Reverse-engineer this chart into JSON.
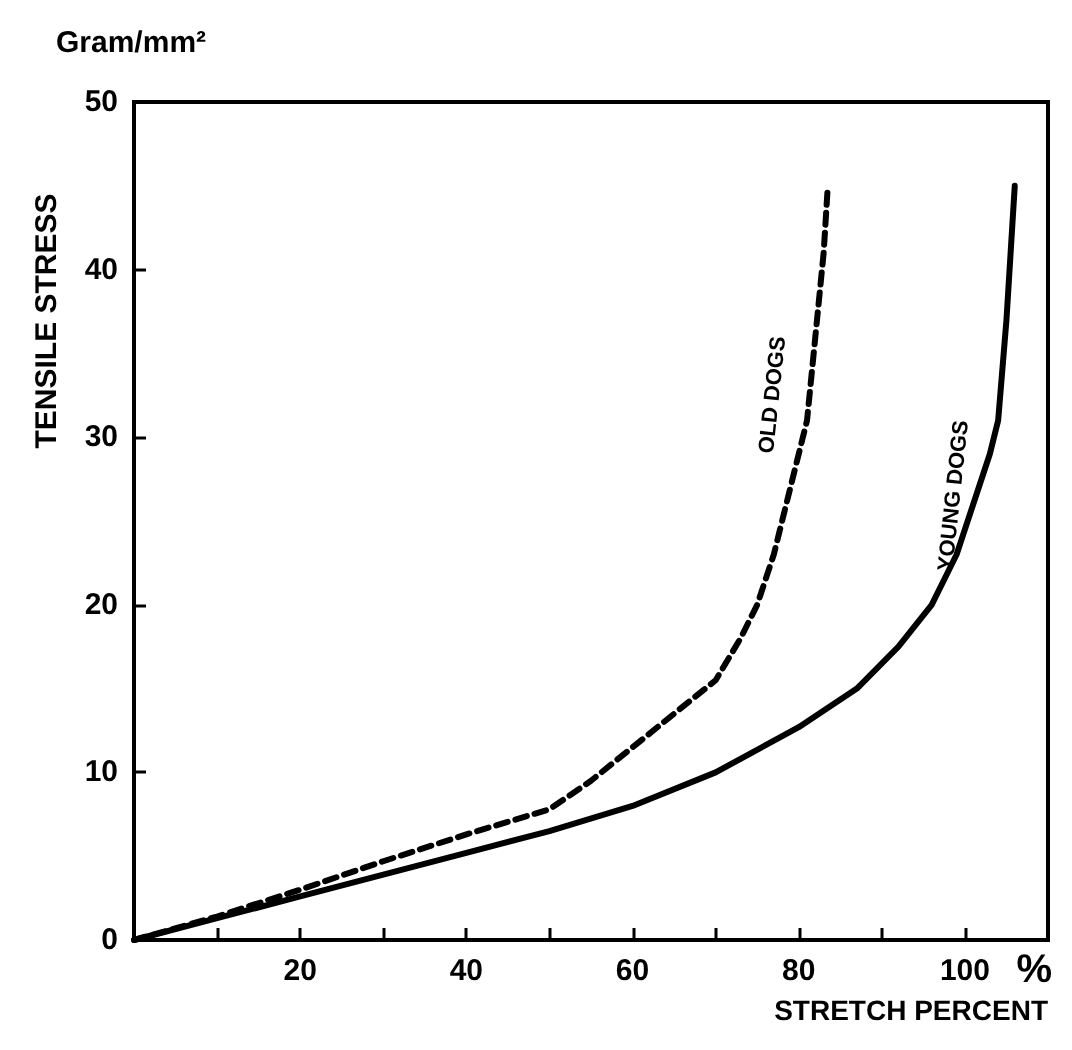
{
  "chart_data": {
    "type": "line",
    "xlabel": "STRETCH PERCENT",
    "ylabel": "TENSILE STRESS",
    "annotations": [
      "Gram/mm²",
      "%"
    ],
    "xlim": [
      0,
      110
    ],
    "xticks": [
      {
        "value": 10,
        "label": null
      },
      20,
      {
        "value": 30,
        "label": null
      },
      40,
      {
        "value": 50,
        "label": null
      },
      60,
      {
        "value": 70,
        "label": null
      },
      80,
      {
        "value": 90,
        "label": null
      },
      100
    ],
    "ylim": [
      0,
      50
    ],
    "yticks": [
      0,
      10,
      20,
      30,
      40,
      50
    ],
    "grid": false,
    "legend": false,
    "marker": "none",
    "series": [
      {
        "name": "OLD DOGS",
        "color": "#000000",
        "line_style": "dashed",
        "x": [
          0,
          10,
          20,
          30,
          40,
          50,
          55,
          60,
          65,
          70,
          73,
          75,
          77,
          79,
          81,
          82,
          83,
          83.5
        ],
        "values": [
          0,
          1.4,
          3,
          4.7,
          6.3,
          7.8,
          9.5,
          11.5,
          13.5,
          15.5,
          18,
          20,
          23,
          27,
          31,
          36,
          41,
          45
        ]
      },
      {
        "name": "YOUNG DOGS",
        "color": "#000000",
        "line_style": "solid",
        "x": [
          0,
          10,
          20,
          30,
          40,
          50,
          60,
          70,
          80,
          87,
          92,
          96,
          99,
          101,
          103,
          104,
          105,
          106
        ],
        "values": [
          0,
          1.3,
          2.6,
          3.9,
          5.2,
          6.5,
          8,
          10,
          12.7,
          15,
          17.5,
          20,
          23,
          26,
          29,
          31,
          37,
          45
        ]
      }
    ]
  }
}
